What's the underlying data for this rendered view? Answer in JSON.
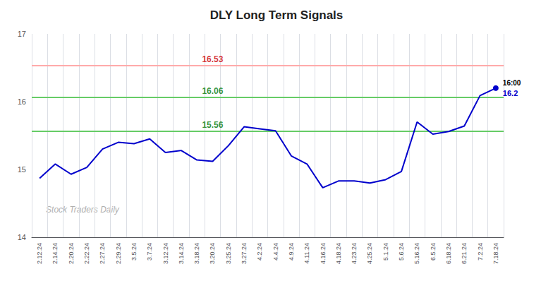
{
  "chart_data": {
    "type": "line",
    "title": "DLY Long Term Signals",
    "categories": [
      "2.12.24",
      "2.14.24",
      "2.20.24",
      "2.22.24",
      "2.27.24",
      "2.29.24",
      "3.5.24",
      "3.7.24",
      "3.12.24",
      "3.14.24",
      "3.18.24",
      "3.20.24",
      "3.25.24",
      "3.27.24",
      "4.2.24",
      "4.4.24",
      "4.9.24",
      "4.11.24",
      "4.16.24",
      "4.18.24",
      "4.23.24",
      "4.25.24",
      "5.1.24",
      "5.6.24",
      "5.16.24",
      "6.5.24",
      "6.18.24",
      "6.21.24",
      "7.2.24",
      "7.18.24"
    ],
    "values": [
      14.87,
      15.08,
      14.93,
      15.03,
      15.3,
      15.4,
      15.38,
      15.45,
      15.25,
      15.28,
      15.14,
      15.12,
      15.35,
      15.63,
      15.6,
      15.57,
      15.2,
      15.08,
      14.73,
      14.83,
      14.83,
      14.8,
      14.85,
      14.97,
      15.7,
      15.52,
      15.56,
      15.64,
      16.09,
      16.2
    ],
    "color": "#0000cc",
    "ylim": [
      14,
      17
    ],
    "yticks": [
      14,
      15,
      16,
      17
    ],
    "grid": "x",
    "reference_lines": [
      {
        "value": 16.53,
        "label": "16.53",
        "color": "#ffaaaa",
        "label_color": "#cc0000"
      },
      {
        "value": 16.06,
        "label": "16.06",
        "color": "#66cc66",
        "label_color": "#007700"
      },
      {
        "value": 15.56,
        "label": "15.56",
        "color": "#66cc66",
        "label_color": "#007700"
      }
    ],
    "last_point": {
      "marker": "circle",
      "color": "#0000cc",
      "time_label": "16:00",
      "time_label_color": "#000000",
      "value_label": "16.2",
      "value_label_color": "#0000cc"
    },
    "watermark": {
      "text": "Stock Traders Daily",
      "color": "#b0b0b0"
    }
  }
}
